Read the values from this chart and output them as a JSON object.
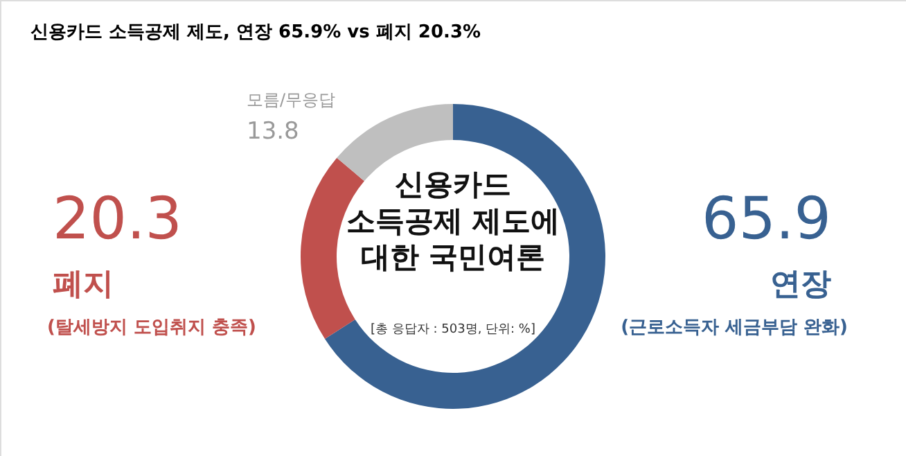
{
  "chart_data": {
    "type": "donut",
    "title": "신용카드 소득공제 제도, 연장 65.9% vs 폐지 20.3%",
    "categories": [
      "연장",
      "폐지",
      "모름/무응답"
    ],
    "values": [
      65.9,
      20.3,
      13.8
    ],
    "colors": [
      "#386191",
      "#c0504d",
      "#bfbfbf"
    ],
    "data_labels": true,
    "annotations": [
      "신용카드\n소득공제 제도에\n대한 국민여론",
      "[총 응답자 : 503명, 단위: %]",
      "(근로소득자 세금부담 완화)",
      "(탈세방지 도입취지 충족)"
    ]
  }
}
